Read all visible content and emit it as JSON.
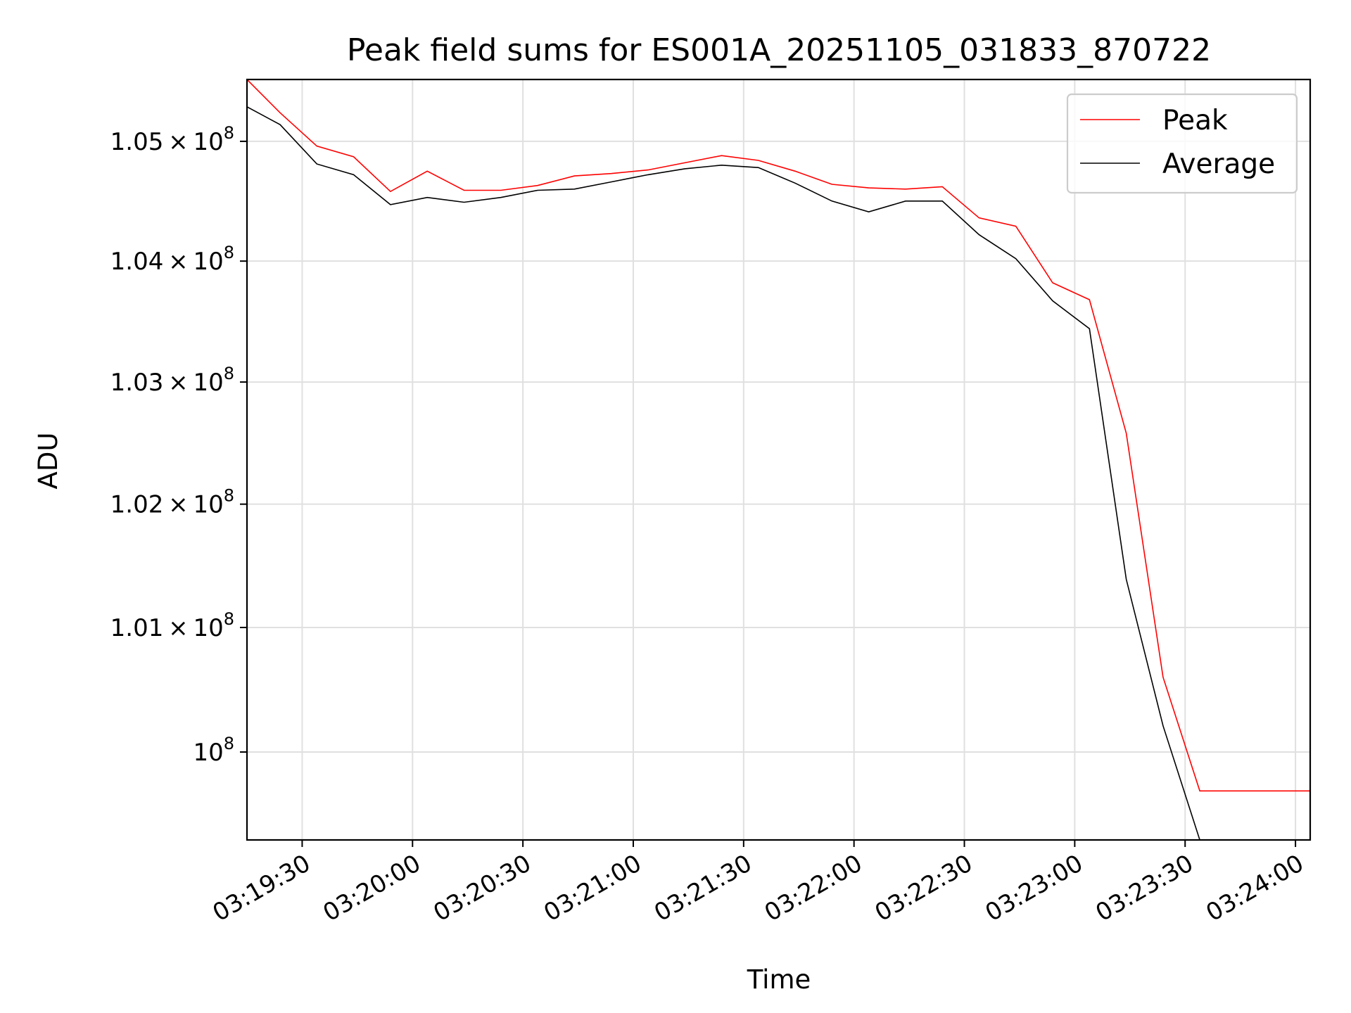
{
  "chart_data": {
    "type": "line",
    "title": "Peak field sums for ES001A_20251105_031833_870722",
    "xlabel": "Time",
    "ylabel": "ADU",
    "yscale": "log",
    "grid": true,
    "legend_position": "top-right",
    "xlim": [
      "03:19:15",
      "03:24:04"
    ],
    "ylim": [
      99300000,
      105520000
    ],
    "x_ticks": [
      "03:19:30",
      "03:20:00",
      "03:20:30",
      "03:21:00",
      "03:21:30",
      "03:22:00",
      "03:22:30",
      "03:23:00",
      "03:23:30",
      "03:24:00"
    ],
    "y_ticks": [
      {
        "value": 100000000,
        "mantissa": "",
        "base": "10",
        "exponent": "8"
      },
      {
        "value": 101000000,
        "mantissa": "1.01",
        "base": "10",
        "exponent": "8"
      },
      {
        "value": 102000000,
        "mantissa": "1.02",
        "base": "10",
        "exponent": "8"
      },
      {
        "value": 103000000,
        "mantissa": "1.03",
        "base": "10",
        "exponent": "8"
      },
      {
        "value": 104000000,
        "mantissa": "1.04",
        "base": "10",
        "exponent": "8"
      },
      {
        "value": 105000000,
        "mantissa": "1.05",
        "base": "10",
        "exponent": "8"
      }
    ],
    "x": [
      "03:19:15",
      "03:19:24",
      "03:19:34",
      "03:19:44",
      "03:19:54",
      "03:20:04",
      "03:20:14",
      "03:20:24",
      "03:20:34",
      "03:20:44",
      "03:20:54",
      "03:21:04",
      "03:21:14",
      "03:21:24",
      "03:21:34",
      "03:21:44",
      "03:21:54",
      "03:22:04",
      "03:22:14",
      "03:22:24",
      "03:22:34",
      "03:22:44",
      "03:22:54",
      "03:23:04",
      "03:23:14",
      "03:23:24",
      "03:23:34",
      "03:24:04"
    ],
    "series": [
      {
        "name": "Peak",
        "color": "#ff0000",
        "values": [
          105520000,
          105240000,
          104960000,
          104870000,
          104580000,
          104750000,
          104590000,
          104590000,
          104630000,
          104710000,
          104730000,
          104760000,
          104820000,
          104880000,
          104840000,
          104750000,
          104640000,
          104610000,
          104600000,
          104620000,
          104360000,
          104290000,
          103820000,
          103680000,
          102580000,
          100600000,
          99690000,
          99690000
        ]
      },
      {
        "name": "Average",
        "color": "#000000",
        "values": [
          105290000,
          105140000,
          104810000,
          104720000,
          104470000,
          104530000,
          104490000,
          104530000,
          104590000,
          104600000,
          104660000,
          104720000,
          104770000,
          104800000,
          104780000,
          104650000,
          104500000,
          104410000,
          104500000,
          104500000,
          104220000,
          104020000,
          103670000,
          103440000,
          101390000,
          100210000,
          99300000,
          99300000
        ]
      }
    ]
  }
}
